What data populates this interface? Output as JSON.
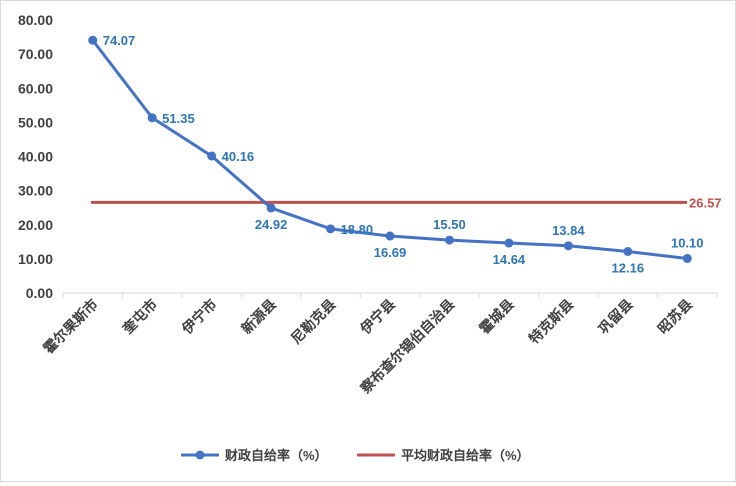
{
  "chart_data": {
    "type": "line",
    "categories": [
      "霍尔果斯市",
      "奎屯市",
      "伊宁市",
      "新源县",
      "尼勒克县",
      "伊宁县",
      "察布查尔锡伯自治县",
      "霍城县",
      "特克斯县",
      "巩留县",
      "昭苏县"
    ],
    "series": [
      {
        "name": "财政自给率（%）",
        "values": [
          74.07,
          51.35,
          40.16,
          24.92,
          18.8,
          16.69,
          15.5,
          14.64,
          13.84,
          12.16,
          10.1
        ],
        "labels": [
          "74.07",
          "51.35",
          "40.16",
          "24.92",
          "18.80",
          "16.69",
          "15.50",
          "14.64",
          "13.84",
          "12.16",
          "10.10"
        ],
        "color": "#4472c4"
      },
      {
        "name": "平均财政自给率（%）",
        "value": 26.57,
        "label": "26.57",
        "color": "#c0504d"
      }
    ],
    "yticks": [
      "0.00",
      "10.00",
      "20.00",
      "30.00",
      "40.00",
      "50.00",
      "60.00",
      "70.00",
      "80.00"
    ],
    "ylim": [
      0,
      80
    ],
    "title": "",
    "xlabel": "",
    "ylabel": "",
    "grid": false,
    "legend_position": "bottom"
  }
}
